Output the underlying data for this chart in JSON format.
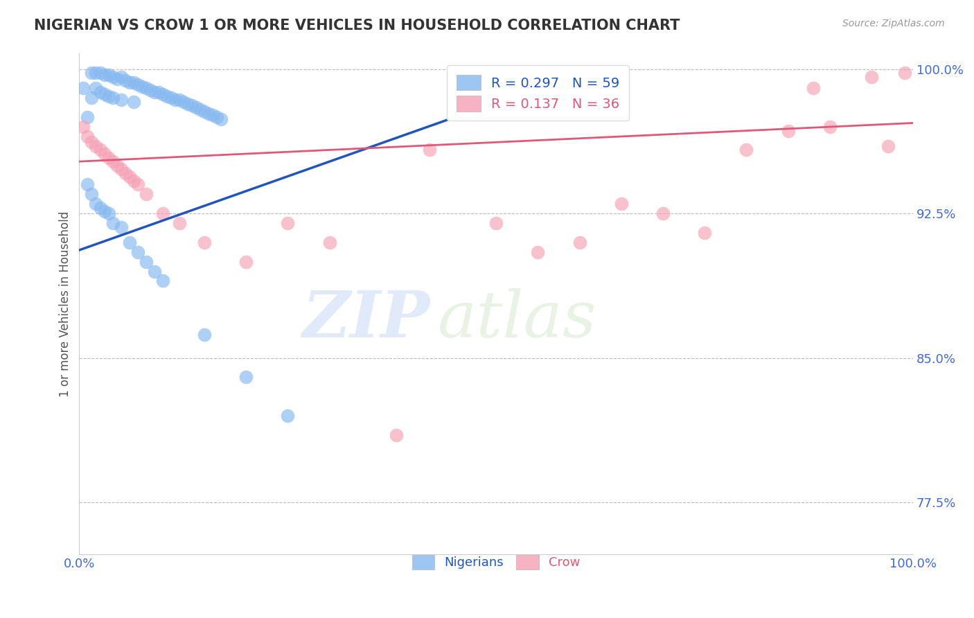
{
  "title": "NIGERIAN VS CROW 1 OR MORE VEHICLES IN HOUSEHOLD CORRELATION CHART",
  "source_text": "Source: ZipAtlas.com",
  "ylabel": "1 or more Vehicles in Household",
  "xlim": [
    0.0,
    1.0
  ],
  "ylim": [
    0.748,
    1.008
  ],
  "yticks": [
    0.775,
    0.85,
    0.925,
    1.0
  ],
  "ytick_labels": [
    "77.5%",
    "85.0%",
    "92.5%",
    "100.0%"
  ],
  "xtick_labels": [
    "0.0%",
    "100.0%"
  ],
  "blue_color": "#85b8f0",
  "pink_color": "#f5a0b5",
  "blue_line_color": "#2255bb",
  "pink_line_color": "#e05878",
  "nigerian_x": [
    0.005,
    0.01,
    0.015,
    0.015,
    0.02,
    0.02,
    0.025,
    0.025,
    0.03,
    0.03,
    0.035,
    0.035,
    0.04,
    0.04,
    0.045,
    0.05,
    0.05,
    0.055,
    0.06,
    0.065,
    0.065,
    0.07,
    0.075,
    0.08,
    0.085,
    0.09,
    0.095,
    0.1,
    0.105,
    0.11,
    0.115,
    0.12,
    0.125,
    0.13,
    0.135,
    0.14,
    0.145,
    0.15,
    0.155,
    0.16,
    0.165,
    0.17,
    0.01,
    0.015,
    0.02,
    0.025,
    0.03,
    0.035,
    0.04,
    0.05,
    0.06,
    0.07,
    0.08,
    0.09,
    0.1,
    0.15,
    0.2,
    0.25,
    0.6
  ],
  "nigerian_y": [
    0.99,
    0.975,
    0.998,
    0.985,
    0.998,
    0.99,
    0.998,
    0.988,
    0.997,
    0.987,
    0.997,
    0.986,
    0.996,
    0.985,
    0.995,
    0.996,
    0.984,
    0.994,
    0.993,
    0.993,
    0.983,
    0.992,
    0.991,
    0.99,
    0.989,
    0.988,
    0.988,
    0.987,
    0.986,
    0.985,
    0.984,
    0.984,
    0.983,
    0.982,
    0.981,
    0.98,
    0.979,
    0.978,
    0.977,
    0.976,
    0.975,
    0.974,
    0.94,
    0.935,
    0.93,
    0.928,
    0.926,
    0.925,
    0.92,
    0.918,
    0.91,
    0.905,
    0.9,
    0.895,
    0.89,
    0.862,
    0.84,
    0.82,
    0.998
  ],
  "crow_x": [
    0.005,
    0.01,
    0.015,
    0.02,
    0.025,
    0.03,
    0.035,
    0.04,
    0.045,
    0.05,
    0.055,
    0.06,
    0.065,
    0.07,
    0.08,
    0.1,
    0.12,
    0.15,
    0.2,
    0.25,
    0.3,
    0.38,
    0.42,
    0.5,
    0.55,
    0.6,
    0.65,
    0.7,
    0.75,
    0.8,
    0.85,
    0.88,
    0.9,
    0.95,
    0.97,
    0.99
  ],
  "crow_y": [
    0.97,
    0.965,
    0.962,
    0.96,
    0.958,
    0.956,
    0.954,
    0.952,
    0.95,
    0.948,
    0.946,
    0.944,
    0.942,
    0.94,
    0.935,
    0.925,
    0.92,
    0.91,
    0.9,
    0.92,
    0.91,
    0.81,
    0.958,
    0.92,
    0.905,
    0.91,
    0.93,
    0.925,
    0.915,
    0.958,
    0.968,
    0.99,
    0.97,
    0.996,
    0.96,
    0.998
  ],
  "watermark_zip": "ZIP",
  "watermark_atlas": "atlas",
  "title_color": "#333333",
  "tick_label_color": "#4169e1",
  "axis_label_color": "#555555",
  "grid_color": "#bbbbbb",
  "background_color": "#ffffff"
}
